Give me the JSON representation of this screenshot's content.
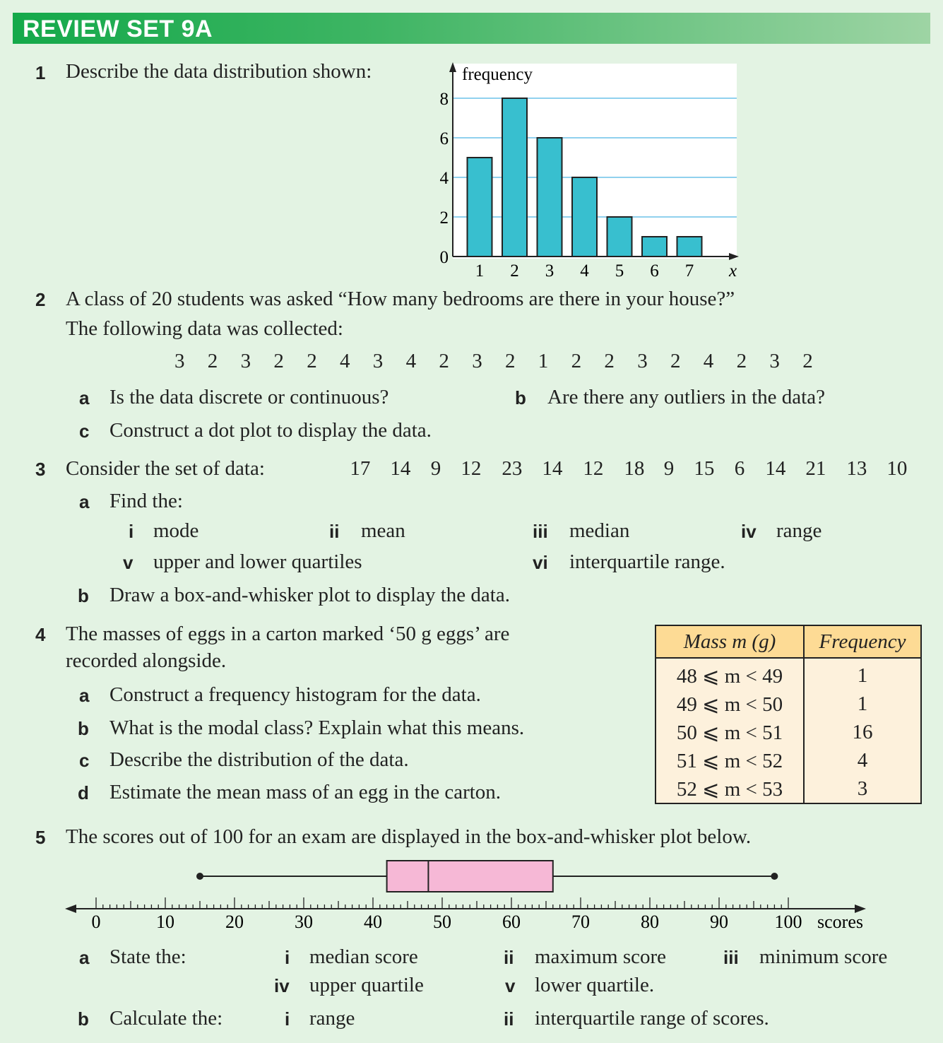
{
  "header": {
    "title": "REVIEW SET 9A"
  },
  "q1": {
    "num": "1",
    "text": "Describe the data distribution shown:",
    "chart_data": {
      "type": "bar",
      "categories": [
        "1",
        "2",
        "3",
        "4",
        "5",
        "6",
        "7"
      ],
      "values": [
        5,
        8,
        6,
        4,
        2,
        1,
        1
      ],
      "ylabel": "frequency",
      "xlabel": "x",
      "yticks": [
        "0",
        "2",
        "4",
        "6",
        "8"
      ],
      "ylim": [
        0,
        8
      ],
      "grid": true,
      "bar_color": "#38bfcf"
    }
  },
  "q2": {
    "num": "2",
    "line1": "A class of 20 students was asked  “How many bedrooms are there in your house?”",
    "line2": "The following data was collected:",
    "data": [
      "3",
      "2",
      "3",
      "2",
      "2",
      "4",
      "3",
      "4",
      "2",
      "3",
      "2",
      "1",
      "2",
      "2",
      "3",
      "2",
      "4",
      "2",
      "3",
      "2"
    ],
    "a_label": "a",
    "a": "Is the data discrete or continuous?",
    "b_label": "b",
    "b": "Are there any outliers in the data?",
    "c_label": "c",
    "c": "Construct a dot plot to display the data."
  },
  "q3": {
    "num": "3",
    "text": "Consider the set of data:",
    "data": [
      "17",
      "14",
      "9",
      "12",
      "23",
      "14",
      "12",
      "18",
      "9",
      "15",
      "6",
      "14",
      "21",
      "13",
      "10"
    ],
    "a_label": "a",
    "a": "Find the:",
    "items": [
      {
        "label": "i",
        "text": "mode"
      },
      {
        "label": "ii",
        "text": "mean"
      },
      {
        "label": "iii",
        "text": "median"
      },
      {
        "label": "iv",
        "text": "range"
      },
      {
        "label": "v",
        "text": "upper and lower quartiles"
      },
      {
        "label": "vi",
        "text": "interquartile range."
      }
    ],
    "b_label": "b",
    "b": "Draw a box-and-whisker plot to display the data."
  },
  "q4": {
    "num": "4",
    "line1": "The masses of eggs in a carton marked ‘50 g eggs’ are",
    "line2": "recorded alongside.",
    "a_label": "a",
    "a": "Construct a frequency histogram for the data.",
    "b_label": "b",
    "b": "What is the modal class? Explain what this means.",
    "c_label": "c",
    "c": "Describe the distribution of the data.",
    "d_label": "d",
    "d": "Estimate the mean mass of an egg in the carton.",
    "table": {
      "header_mass": "Mass m (g)",
      "header_freq": "Frequency",
      "rows": [
        {
          "mass": "48 ⩽ m < 49",
          "freq": "1"
        },
        {
          "mass": "49 ⩽ m < 50",
          "freq": "1"
        },
        {
          "mass": "50 ⩽ m < 51",
          "freq": "16"
        },
        {
          "mass": "51 ⩽ m < 52",
          "freq": "4"
        },
        {
          "mass": "52 ⩽ m < 53",
          "freq": "3"
        }
      ]
    }
  },
  "q5": {
    "num": "5",
    "text": "The scores out of 100 for an exam are displayed in the box-and-whisker plot below.",
    "boxplot": {
      "min": 15,
      "q1": 42,
      "median": 48,
      "q3": 66,
      "max": 98,
      "axis_ticks": [
        "0",
        "10",
        "20",
        "30",
        "40",
        "50",
        "60",
        "70",
        "80",
        "90",
        "100"
      ],
      "axis_label": "scores",
      "box_color": "#f6b8d6"
    },
    "a_label": "a",
    "a": "State the:",
    "a_items": [
      {
        "label": "i",
        "text": "median score"
      },
      {
        "label": "ii",
        "text": "maximum score"
      },
      {
        "label": "iii",
        "text": "minimum score"
      },
      {
        "label": "iv",
        "text": "upper quartile"
      },
      {
        "label": "v",
        "text": "lower quartile."
      }
    ],
    "b_label": "b",
    "b": "Calculate the:",
    "b_items": [
      {
        "label": "i",
        "text": "range"
      },
      {
        "label": "ii",
        "text": "interquartile range of scores."
      }
    ]
  }
}
